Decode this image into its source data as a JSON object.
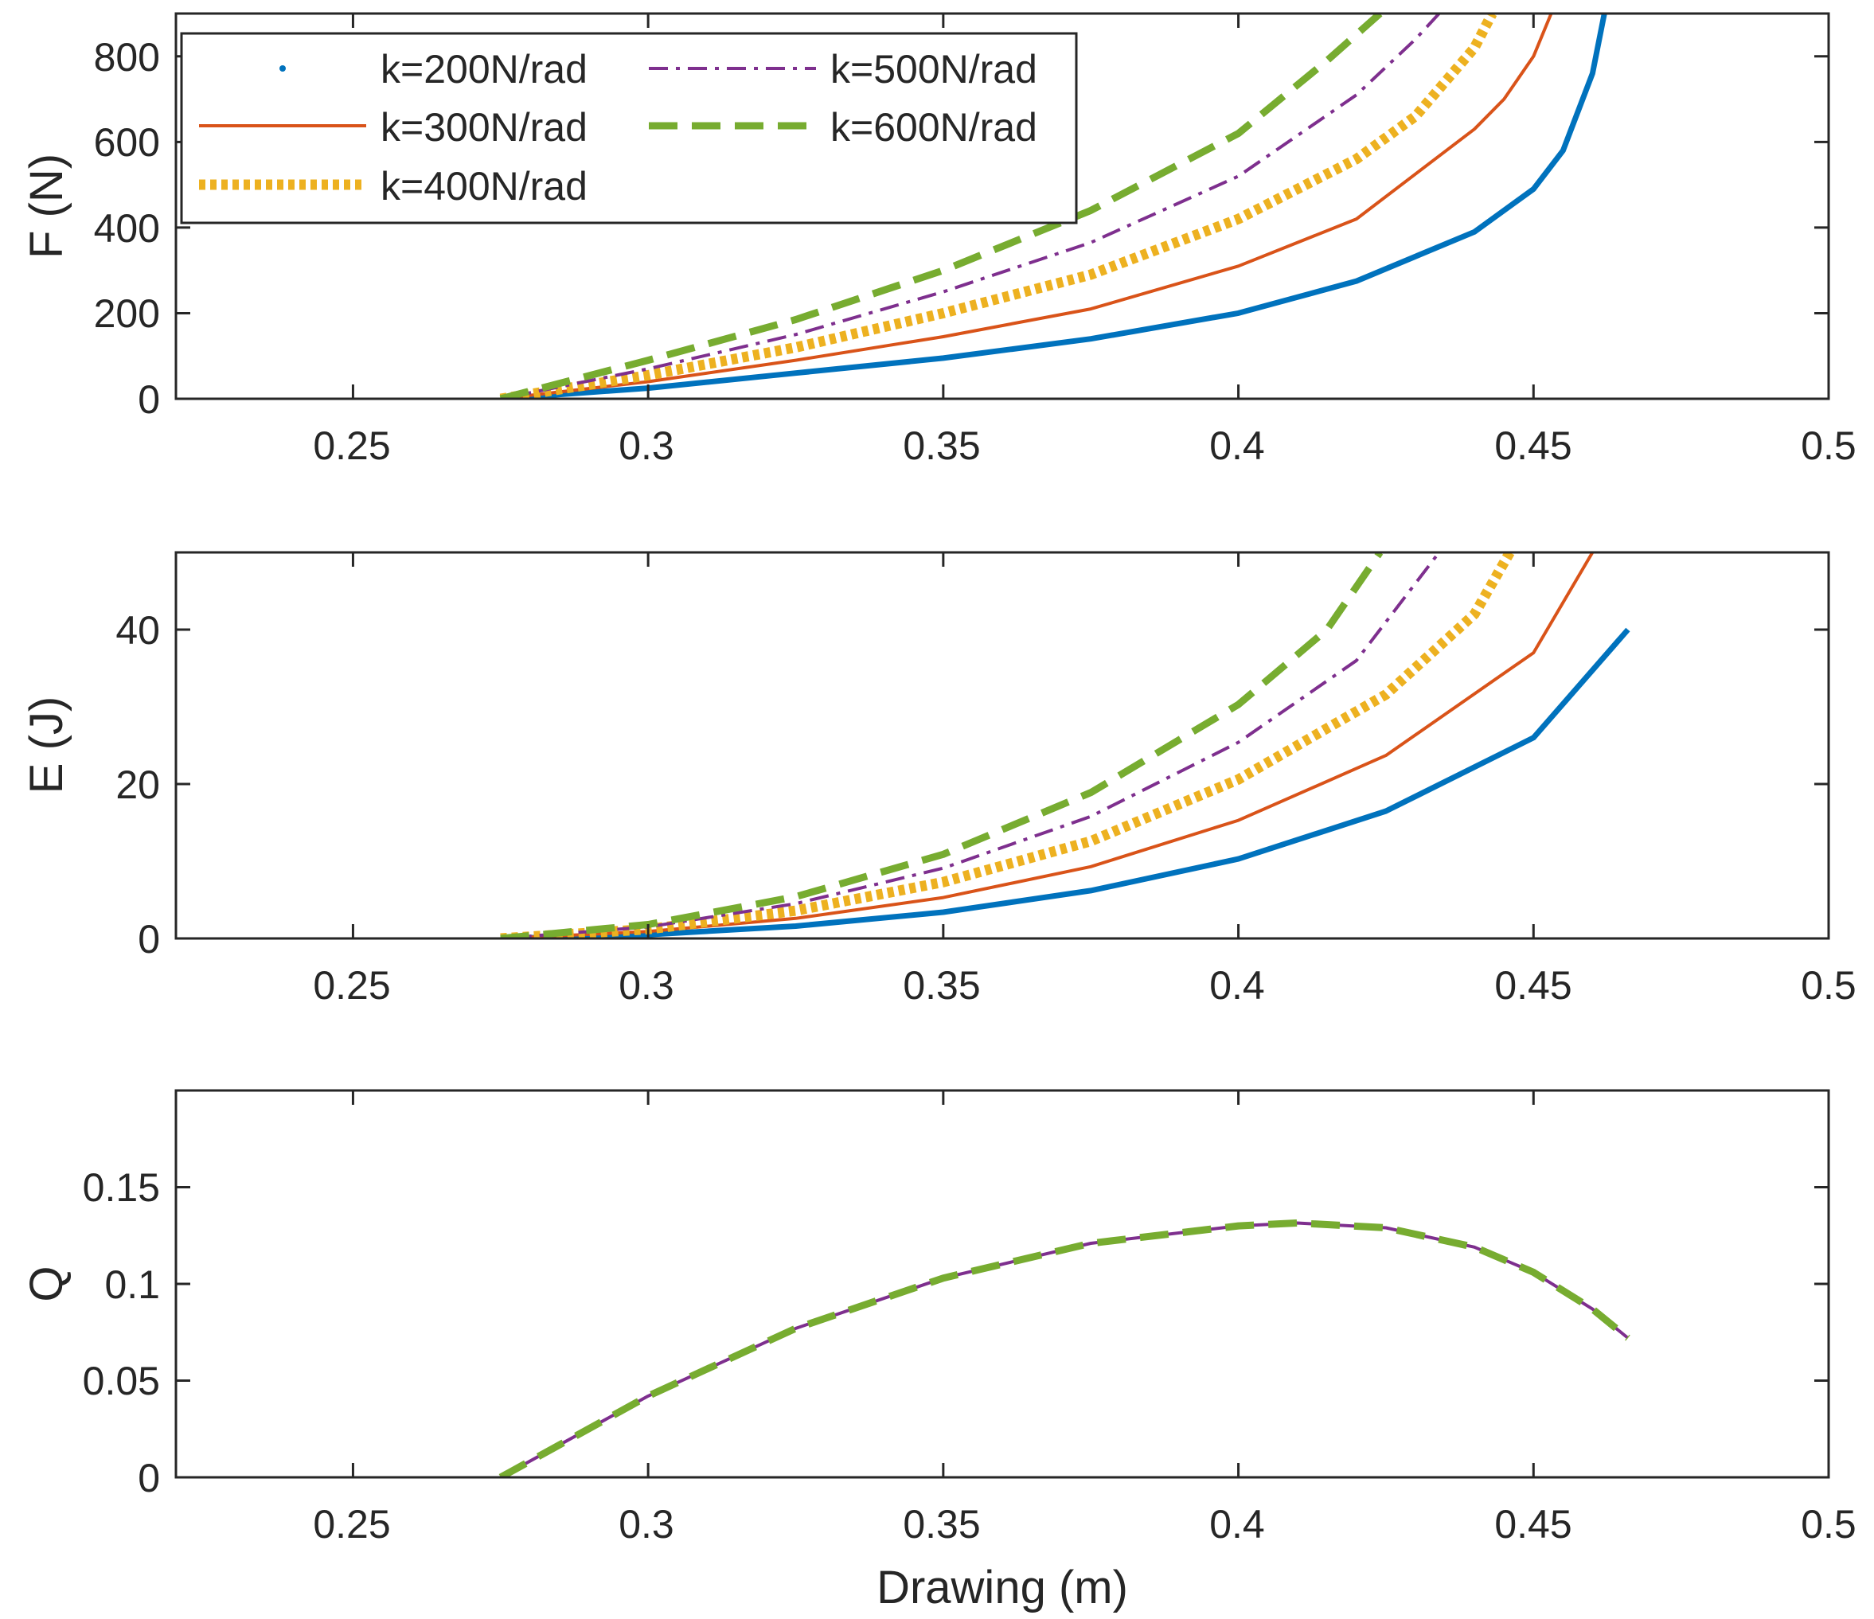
{
  "chart_data": [
    {
      "type": "line",
      "panel": "force",
      "xlabel": "",
      "ylabel": "F (N)",
      "xlim": [
        0.22,
        0.5
      ],
      "ylim": [
        0,
        900
      ],
      "xticks": [
        0.25,
        0.3,
        0.35,
        0.4,
        0.45,
        0.5
      ],
      "xtick_labels": [
        "0.25",
        "0.3",
        "0.35",
        "0.4",
        "0.45",
        "0.5"
      ],
      "yticks": [
        0,
        200,
        400,
        600,
        800
      ],
      "ytick_labels": [
        "0",
        "200",
        "400",
        "600",
        "800"
      ],
      "legend": "top-left",
      "series": [
        {
          "name": "k=200N/rad",
          "color": "#0072BD",
          "style": "solid",
          "width": 7,
          "x": [
            0.275,
            0.3,
            0.325,
            0.35,
            0.375,
            0.4,
            0.42,
            0.44,
            0.45,
            0.455,
            0.46,
            0.462
          ],
          "y": [
            0,
            25,
            60,
            95,
            140,
            200,
            275,
            390,
            490,
            580,
            760,
            900
          ]
        },
        {
          "name": "k=300N/rad",
          "color": "#D95319",
          "style": "solid",
          "width": 4,
          "x": [
            0.275,
            0.3,
            0.325,
            0.35,
            0.375,
            0.4,
            0.42,
            0.44,
            0.445,
            0.45,
            0.453
          ],
          "y": [
            0,
            40,
            90,
            145,
            210,
            310,
            420,
            630,
            700,
            800,
            900
          ]
        },
        {
          "name": "k=400N/rad",
          "color": "#EDB120",
          "style": "dotted",
          "width": 13,
          "x": [
            0.275,
            0.3,
            0.325,
            0.35,
            0.375,
            0.4,
            0.42,
            0.43,
            0.44,
            0.443
          ],
          "y": [
            0,
            55,
            120,
            200,
            290,
            420,
            560,
            660,
            820,
            900
          ]
        },
        {
          "name": "k=500N/rad",
          "color": "#7E2F8E",
          "style": "dashdot",
          "width": 4,
          "x": [
            0.275,
            0.3,
            0.325,
            0.35,
            0.375,
            0.4,
            0.42,
            0.43,
            0.434
          ],
          "y": [
            0,
            70,
            150,
            250,
            365,
            520,
            710,
            840,
            900
          ]
        },
        {
          "name": "k=600N/rad",
          "color": "#77AC30",
          "style": "dashed",
          "width": 9,
          "x": [
            0.275,
            0.3,
            0.325,
            0.35,
            0.375,
            0.4,
            0.415,
            0.424
          ],
          "y": [
            0,
            90,
            185,
            300,
            440,
            620,
            790,
            900
          ]
        }
      ]
    },
    {
      "type": "line",
      "panel": "energy",
      "xlabel": "",
      "ylabel": "E (J)",
      "xlim": [
        0.22,
        0.5
      ],
      "ylim": [
        0,
        50
      ],
      "xticks": [
        0.25,
        0.3,
        0.35,
        0.4,
        0.45,
        0.5
      ],
      "xtick_labels": [
        "0.25",
        "0.3",
        "0.35",
        "0.4",
        "0.45",
        "0.5"
      ],
      "yticks": [
        0,
        20,
        40
      ],
      "ytick_labels": [
        "0",
        "20",
        "40"
      ],
      "series": [
        {
          "name": "k=200N/rad",
          "color": "#0072BD",
          "style": "solid",
          "width": 7,
          "x": [
            0.275,
            0.3,
            0.325,
            0.35,
            0.375,
            0.4,
            0.425,
            0.45,
            0.466
          ],
          "y": [
            0,
            0.5,
            1.6,
            3.4,
            6.2,
            10.3,
            16.5,
            26.0,
            40.0
          ]
        },
        {
          "name": "k=300N/rad",
          "color": "#D95319",
          "style": "solid",
          "width": 4,
          "x": [
            0.275,
            0.3,
            0.325,
            0.35,
            0.375,
            0.4,
            0.425,
            0.45,
            0.46
          ],
          "y": [
            0,
            0.9,
            2.6,
            5.3,
            9.3,
            15.3,
            23.7,
            37.0,
            50.0
          ]
        },
        {
          "name": "k=400N/rad",
          "color": "#EDB120",
          "style": "dotted",
          "width": 13,
          "x": [
            0.275,
            0.3,
            0.325,
            0.35,
            0.375,
            0.4,
            0.425,
            0.44,
            0.446
          ],
          "y": [
            0,
            1.2,
            3.6,
            7.3,
            12.6,
            20.6,
            31.6,
            42.0,
            50.0
          ]
        },
        {
          "name": "k=500N/rad",
          "color": "#7E2F8E",
          "style": "dashdot",
          "width": 4,
          "x": [
            0.275,
            0.3,
            0.325,
            0.35,
            0.375,
            0.4,
            0.42,
            0.434
          ],
          "y": [
            0,
            1.5,
            4.5,
            9.1,
            15.8,
            25.4,
            36.0,
            50.0
          ]
        },
        {
          "name": "k=600N/rad",
          "color": "#77AC30",
          "style": "dashed",
          "width": 9,
          "x": [
            0.275,
            0.3,
            0.325,
            0.35,
            0.375,
            0.4,
            0.415,
            0.424
          ],
          "y": [
            0,
            1.8,
            5.4,
            10.9,
            18.9,
            30.3,
            40.0,
            50.0
          ]
        }
      ]
    },
    {
      "type": "line",
      "panel": "efficiency",
      "xlabel": "Drawing (m)",
      "ylabel": "Q",
      "xlim": [
        0.22,
        0.5
      ],
      "ylim": [
        0,
        0.2
      ],
      "xticks": [
        0.25,
        0.3,
        0.35,
        0.4,
        0.45,
        0.5
      ],
      "xtick_labels": [
        "0.25",
        "0.3",
        "0.35",
        "0.4",
        "0.45",
        "0.5"
      ],
      "yticks": [
        0,
        0.05,
        0.1,
        0.15
      ],
      "ytick_labels": [
        "0",
        "0.05",
        "0.1",
        "0.15"
      ],
      "series": [
        {
          "name": "k=500N/rad",
          "color": "#7E2F8E",
          "style": "solid",
          "width": 4,
          "x": [
            0.275,
            0.3,
            0.325,
            0.35,
            0.375,
            0.4,
            0.41,
            0.425,
            0.44,
            0.45,
            0.46,
            0.466
          ],
          "y": [
            0,
            0.042,
            0.077,
            0.103,
            0.121,
            0.13,
            0.1315,
            0.129,
            0.119,
            0.106,
            0.087,
            0.072
          ]
        },
        {
          "name": "k=600N/rad",
          "color": "#77AC30",
          "style": "dashed",
          "width": 9,
          "x": [
            0.275,
            0.3,
            0.325,
            0.35,
            0.375,
            0.4,
            0.41,
            0.425,
            0.44,
            0.45,
            0.46,
            0.466
          ],
          "y": [
            0,
            0.042,
            0.077,
            0.103,
            0.121,
            0.13,
            0.1315,
            0.129,
            0.119,
            0.106,
            0.087,
            0.072
          ]
        }
      ]
    }
  ]
}
